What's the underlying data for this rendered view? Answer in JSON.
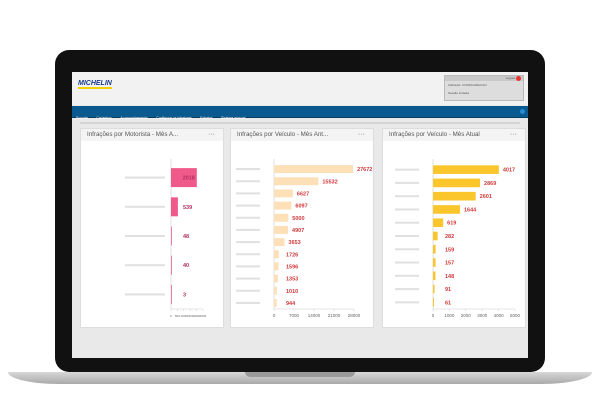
{
  "header": {
    "logo": "MICHELIN",
    "user_label": "Utilizador: CONFIGURACAO",
    "session_label": "Sessão iniciada",
    "logout": "Logout"
  },
  "nav": {
    "items": [
      "Suporte",
      "Cadastros",
      "Acompanhamento",
      "Configurar os infratores",
      "Extratos",
      "Sistema manual"
    ]
  },
  "colors": {
    "nav": "#0b5a8f",
    "pink": "#f05a8a",
    "peach": "#fde0b8",
    "yellow": "#fbc52c",
    "value_text": "#d0383a"
  },
  "chart_data": [
    {
      "type": "bar",
      "orientation": "horizontal",
      "title": "Infrações por Motorista - Mês A...",
      "values": [
        2018,
        539,
        48,
        40,
        3
      ],
      "xlim": [
        0,
        2500
      ],
      "xticks": [
        0,
        500,
        1000,
        1500,
        2000,
        2500
      ],
      "color": "#f05a8a"
    },
    {
      "type": "bar",
      "orientation": "horizontal",
      "title": "Infrações por Veículo - Mês Ant...",
      "values": [
        27672,
        15532,
        6627,
        6097,
        5000,
        4907,
        3653,
        1726,
        1596,
        1353,
        1010,
        944
      ],
      "xlim": [
        0,
        28000
      ],
      "xticks": [
        0,
        7000,
        14000,
        21000,
        28000
      ],
      "color": "#fde0b8"
    },
    {
      "type": "bar",
      "orientation": "horizontal",
      "title": "Infrações por Veículo - Mês Atual",
      "values": [
        4017,
        2869,
        2601,
        1644,
        619,
        282,
        159,
        157,
        148,
        91,
        61
      ],
      "xlim": [
        0,
        5000
      ],
      "xticks": [
        0,
        1000,
        2000,
        3000,
        4000,
        5000
      ],
      "color": "#fbc52c"
    }
  ]
}
